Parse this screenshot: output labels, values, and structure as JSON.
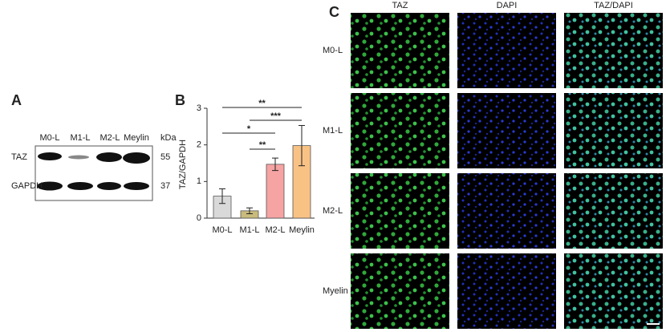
{
  "panel_a": {
    "letter": "A",
    "lanes": [
      "M0-L",
      "M1-L",
      "M2-L",
      "Meylin"
    ],
    "unit": "kDa",
    "rows": [
      {
        "label": "TAZ",
        "kda": "55"
      },
      {
        "label": "GAPDH",
        "kda": "37"
      }
    ]
  },
  "chart_data": {
    "type": "bar",
    "panel": "B",
    "y_label": "TAZ/GAPDH",
    "categories": [
      "M0-L",
      "M1-L",
      "M2-L",
      "Meylin"
    ],
    "values": [
      0.6,
      0.2,
      1.47,
      1.98
    ],
    "errors": [
      0.2,
      0.08,
      0.17,
      0.55
    ],
    "colors": [
      "#d9d9d9",
      "#c9bb7c",
      "#f6a3a3",
      "#f9c285"
    ],
    "ylim": [
      0,
      3
    ],
    "yticks": [
      0,
      1,
      2,
      3
    ],
    "annotations": [
      "**",
      "***",
      "*",
      "**"
    ]
  },
  "panel_c": {
    "letter": "C",
    "columns": [
      "TAZ",
      "DAPI",
      "TAZ/DAPI"
    ],
    "rows": [
      "M0-L",
      "M1-L",
      "M2-L",
      "Myelin"
    ]
  }
}
